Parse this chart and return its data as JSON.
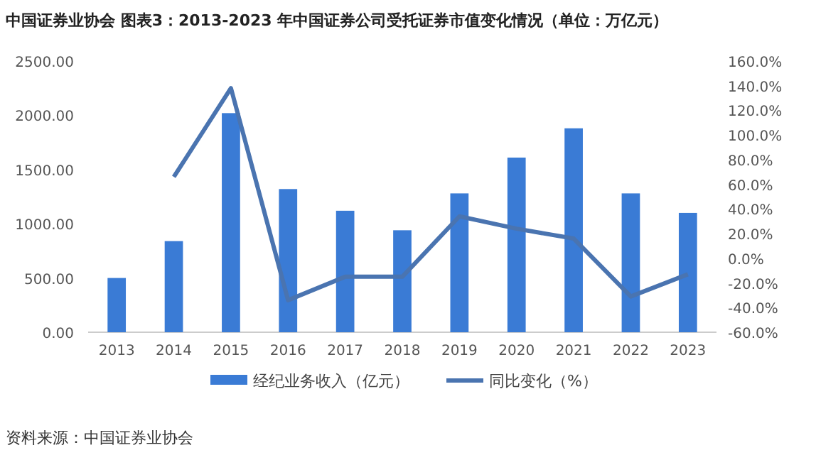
{
  "chart_data": {
    "type": "bar",
    "title": "中国证券业协会  图表3：2013-2023 年中国证券公司受托证券市值变化情况（单位：万亿元）",
    "categories": [
      "2013",
      "2014",
      "2015",
      "2016",
      "2017",
      "2018",
      "2019",
      "2020",
      "2021",
      "2022",
      "2023"
    ],
    "series": [
      {
        "name": "经纪业务收入（亿元）",
        "color": "#3a7bd5",
        "values": [
          500,
          840,
          2020,
          1320,
          1120,
          940,
          1280,
          1610,
          1880,
          1280,
          1100
        ]
      },
      {
        "name": "同比变化（%）",
        "color": "#4a74b0",
        "type": "line",
        "axis": "y2",
        "values": [
          null,
          66,
          138,
          -34,
          -15,
          -15,
          34,
          24,
          16,
          -31,
          -13
        ]
      }
    ],
    "ylim": [
      0,
      2500
    ],
    "yticks": [
      {
        "value": 0,
        "label": "0.00"
      },
      {
        "value": 500,
        "label": "500.00"
      },
      {
        "value": 1000,
        "label": "1000.00"
      },
      {
        "value": 1500,
        "label": "1500.00"
      },
      {
        "value": 2000,
        "label": "2000.00"
      },
      {
        "value": 2500,
        "label": "2500.00"
      }
    ],
    "y2lim": [
      -60,
      160
    ],
    "y2ticks": [
      {
        "value": -60,
        "label": "-60.0%"
      },
      {
        "value": -40,
        "label": "-40.0%"
      },
      {
        "value": -20,
        "label": "-20.0%"
      },
      {
        "value": 0,
        "label": "0.0%"
      },
      {
        "value": 20,
        "label": "20.0%"
      },
      {
        "value": 40,
        "label": "40.0%"
      },
      {
        "value": 60,
        "label": "60.0%"
      },
      {
        "value": 80,
        "label": "80.0%"
      },
      {
        "value": 100,
        "label": "100.0%"
      },
      {
        "value": 120,
        "label": "120.0%"
      },
      {
        "value": 140,
        "label": "140.0%"
      },
      {
        "value": 160,
        "label": "160.0%"
      }
    ],
    "legend": "bottom",
    "annotations": [
      "资料来源：中国证券业协会"
    ]
  }
}
